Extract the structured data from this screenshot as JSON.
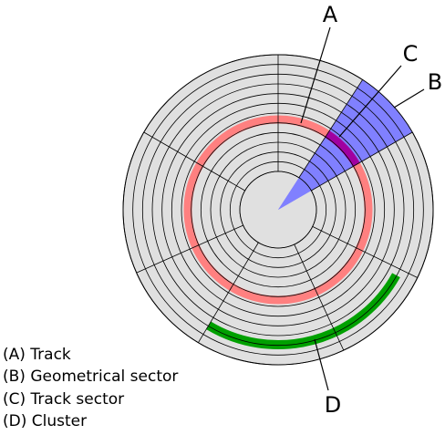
{
  "callouts": [
    "A",
    "B",
    "C",
    "D"
  ],
  "legend": [
    "(A) Track",
    "(B) Geometrical sector",
    "(C) Track sector",
    "(D) Cluster"
  ]
}
